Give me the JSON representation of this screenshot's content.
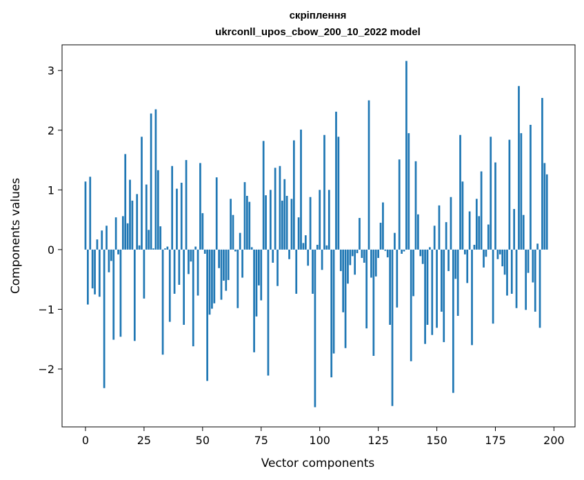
{
  "chart_data": {
    "type": "bar",
    "title_line1": "скріплення",
    "title_line2": "ukrconll_upos_cbow_200_10_2022 model",
    "xlabel": "Vector components",
    "ylabel": "Components values",
    "xlim": [
      -10,
      209
    ],
    "ylim": [
      -2.97,
      3.43
    ],
    "xticks": [
      0,
      25,
      50,
      75,
      100,
      125,
      150,
      175,
      200
    ],
    "yticks": [
      -2,
      -1,
      0,
      1,
      2,
      3
    ],
    "ytick_labels": [
      "−2",
      "−1",
      "0",
      "1",
      "2",
      "3"
    ],
    "color": "#1f77b4",
    "values": [
      1.14,
      -0.92,
      1.22,
      -0.65,
      -0.75,
      0.17,
      -0.79,
      0.32,
      -2.32,
      0.4,
      -0.38,
      -0.19,
      -1.51,
      0.54,
      -0.08,
      -1.46,
      0.56,
      1.6,
      0.44,
      1.17,
      0.82,
      -1.53,
      0.93,
      0.07,
      1.89,
      -0.82,
      1.09,
      0.33,
      2.28,
      0.02,
      2.35,
      1.33,
      0.39,
      -1.76,
      0.02,
      0.05,
      -1.21,
      1.4,
      -0.74,
      1.02,
      -0.59,
      1.12,
      -1.26,
      1.5,
      -0.41,
      -0.2,
      -1.62,
      0.05,
      -0.77,
      1.45,
      0.61,
      -0.07,
      -2.2,
      -1.09,
      -0.99,
      -0.9,
      1.21,
      -0.31,
      -0.84,
      -0.52,
      -0.69,
      -0.51,
      0.85,
      0.58,
      -0.03,
      -0.98,
      0.28,
      -0.47,
      1.13,
      0.9,
      0.8,
      0.04,
      -1.72,
      -1.12,
      -0.6,
      -0.85,
      1.82,
      0.91,
      -2.11,
      1.0,
      -0.22,
      1.37,
      -0.61,
      1.4,
      0.82,
      1.18,
      0.9,
      -0.16,
      0.85,
      1.83,
      -0.74,
      0.54,
      2.01,
      0.11,
      0.24,
      -0.27,
      0.88,
      -0.74,
      -2.64,
      0.08,
      1.0,
      -0.34,
      1.92,
      0.07,
      1.0,
      -2.14,
      -1.74,
      2.31,
      1.89,
      -0.36,
      -1.05,
      -1.65,
      -0.57,
      -0.26,
      -0.11,
      -0.42,
      -0.06,
      0.53,
      -0.14,
      -0.22,
      -1.32,
      2.5,
      -0.47,
      -1.78,
      -0.45,
      -0.14,
      0.45,
      0.79,
      -0.02,
      -0.13,
      -1.26,
      -2.62,
      0.28,
      -0.97,
      1.51,
      -0.07,
      -0.03,
      3.16,
      1.95,
      -1.87,
      -0.78,
      1.48,
      0.59,
      -0.11,
      -0.24,
      -1.58,
      -1.26,
      0.04,
      -1.43,
      0.4,
      -1.31,
      0.74,
      -1.04,
      -1.55,
      0.46,
      -0.36,
      0.88,
      -2.4,
      -0.49,
      -1.11,
      1.92,
      1.14,
      -0.08,
      -0.56,
      0.64,
      -1.6,
      0.08,
      0.85,
      0.56,
      1.31,
      -0.3,
      -0.12,
      0.42,
      1.89,
      -1.24,
      1.46,
      -0.16,
      -0.08,
      -0.28,
      -0.42,
      -0.77,
      1.84,
      -0.74,
      0.68,
      -0.98,
      2.74,
      1.95,
      0.58,
      -1.01,
      -0.39,
      2.09,
      -0.55,
      -1.04,
      0.1,
      -1.31,
      2.54,
      1.45,
      1.26
    ]
  }
}
